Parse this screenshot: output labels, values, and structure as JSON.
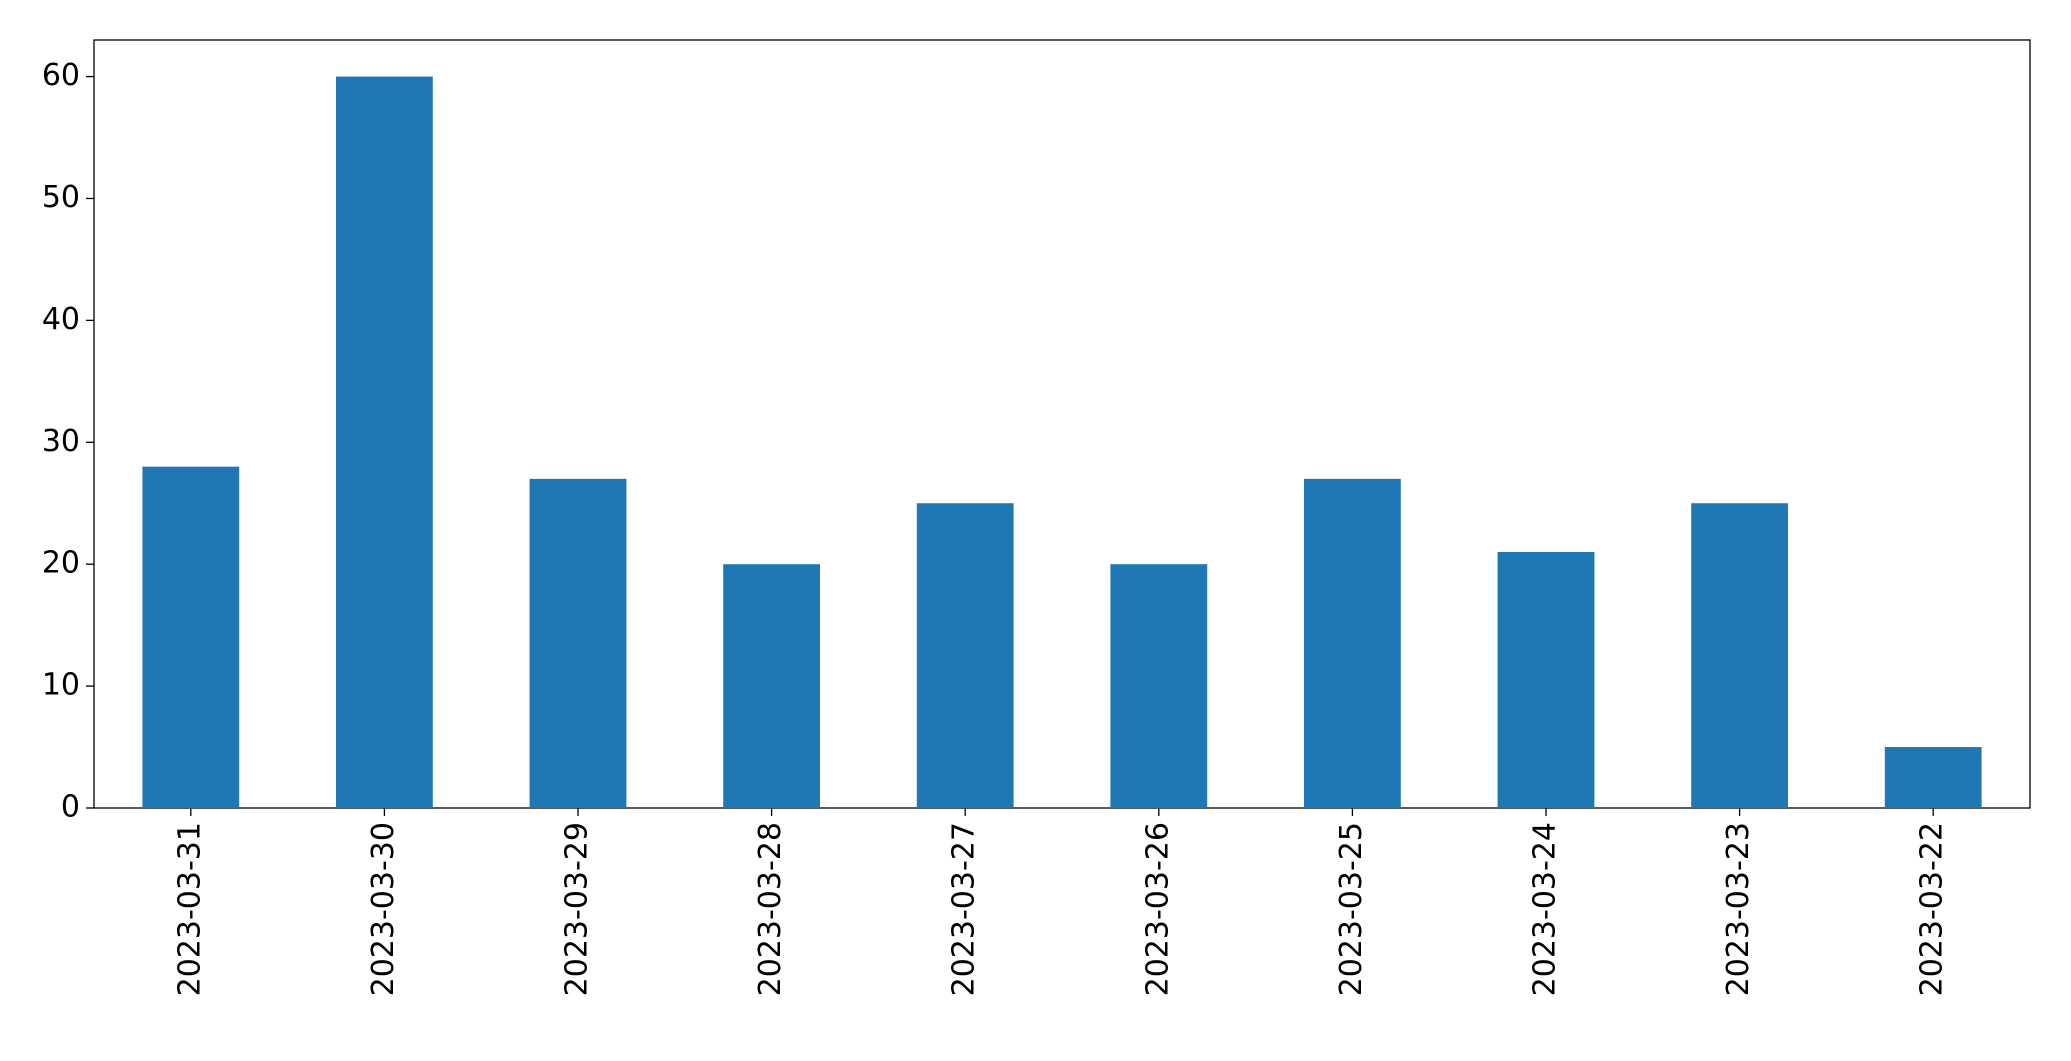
{
  "chart_data": {
    "type": "bar",
    "categories": [
      "2023-03-31",
      "2023-03-30",
      "2023-03-29",
      "2023-03-28",
      "2023-03-27",
      "2023-03-26",
      "2023-03-25",
      "2023-03-24",
      "2023-03-23",
      "2023-03-22"
    ],
    "values": [
      28,
      60,
      27,
      20,
      25,
      20,
      27,
      21,
      25,
      5
    ],
    "color": "#1f77b4",
    "ylim": [
      0,
      63
    ],
    "yticks": [
      0,
      10,
      20,
      30,
      40,
      50,
      60
    ],
    "grid": false
  }
}
